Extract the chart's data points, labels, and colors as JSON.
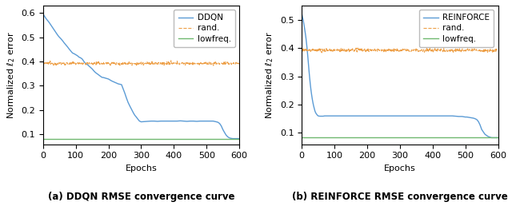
{
  "fig_width": 6.4,
  "fig_height": 2.58,
  "dpi": 100,
  "background_color": "#ffffff",
  "subplot_a": {
    "caption": "(a) DDQN RMSE convergence curve",
    "ylabel": "Normalized $\\ell_2$ error",
    "xlabel": "Epochs",
    "xlim": [
      0,
      600
    ],
    "ylim": [
      0.06,
      0.63
    ],
    "yticks": [
      0.1,
      0.2,
      0.3,
      0.4,
      0.5,
      0.6
    ],
    "xticks": [
      0,
      100,
      200,
      300,
      400,
      500,
      600
    ],
    "legend_label": "DDQN",
    "rand_value": 0.392,
    "lowfreq_value": 0.083,
    "ddqn_x": [
      0,
      5,
      10,
      15,
      20,
      25,
      30,
      35,
      40,
      45,
      50,
      55,
      60,
      65,
      70,
      75,
      80,
      85,
      90,
      95,
      100,
      105,
      110,
      115,
      120,
      125,
      130,
      135,
      140,
      145,
      150,
      155,
      160,
      165,
      170,
      175,
      180,
      185,
      190,
      195,
      200,
      210,
      220,
      230,
      240,
      250,
      255,
      260,
      265,
      270,
      275,
      280,
      285,
      290,
      295,
      300,
      310,
      320,
      330,
      340,
      350,
      360,
      370,
      380,
      390,
      400,
      410,
      420,
      430,
      440,
      450,
      460,
      470,
      480,
      490,
      500,
      510,
      520,
      530,
      535,
      540,
      545,
      550,
      555,
      560,
      565,
      570,
      575,
      580,
      585,
      590,
      595,
      600
    ],
    "ddqn_y": [
      0.595,
      0.585,
      0.575,
      0.567,
      0.558,
      0.548,
      0.538,
      0.528,
      0.518,
      0.508,
      0.5,
      0.493,
      0.485,
      0.476,
      0.468,
      0.46,
      0.451,
      0.443,
      0.435,
      0.432,
      0.428,
      0.424,
      0.418,
      0.415,
      0.41,
      0.4,
      0.392,
      0.388,
      0.382,
      0.376,
      0.37,
      0.362,
      0.355,
      0.35,
      0.345,
      0.34,
      0.335,
      0.334,
      0.332,
      0.33,
      0.328,
      0.32,
      0.314,
      0.308,
      0.305,
      0.27,
      0.25,
      0.232,
      0.218,
      0.205,
      0.192,
      0.18,
      0.172,
      0.163,
      0.155,
      0.152,
      0.153,
      0.154,
      0.155,
      0.155,
      0.154,
      0.155,
      0.155,
      0.155,
      0.155,
      0.155,
      0.155,
      0.156,
      0.155,
      0.154,
      0.155,
      0.155,
      0.154,
      0.155,
      0.155,
      0.155,
      0.155,
      0.155,
      0.152,
      0.15,
      0.145,
      0.135,
      0.12,
      0.108,
      0.097,
      0.09,
      0.086,
      0.084,
      0.083,
      0.083,
      0.083,
      0.083,
      0.083
    ],
    "line_color": "#5b9bd5",
    "rand_color": "#ed9e45",
    "lowfreq_color": "#70b870"
  },
  "subplot_b": {
    "caption": "(b) REINFORCE RMSE convergence curve",
    "ylabel": "Normalized $\\ell_2$ error",
    "xlabel": "Epochs",
    "xlim": [
      0,
      600
    ],
    "ylim": [
      0.06,
      0.55
    ],
    "yticks": [
      0.1,
      0.2,
      0.3,
      0.4,
      0.5
    ],
    "xticks": [
      0,
      100,
      200,
      300,
      400,
      500,
      600
    ],
    "legend_label": "REINFORCE",
    "rand_value": 0.392,
    "lowfreq_value": 0.083,
    "reinforce_x": [
      0,
      2,
      4,
      6,
      8,
      10,
      12,
      14,
      16,
      18,
      20,
      22,
      24,
      26,
      28,
      30,
      32,
      34,
      36,
      38,
      40,
      42,
      44,
      46,
      48,
      50,
      55,
      60,
      65,
      70,
      75,
      80,
      85,
      90,
      95,
      100,
      120,
      140,
      160,
      180,
      200,
      250,
      300,
      350,
      400,
      450,
      460,
      470,
      480,
      490,
      495,
      500,
      505,
      510,
      515,
      520,
      525,
      530,
      535,
      540,
      545,
      550,
      560,
      570,
      580,
      590,
      600
    ],
    "reinforce_y": [
      0.52,
      0.51,
      0.5,
      0.487,
      0.473,
      0.458,
      0.442,
      0.422,
      0.4,
      0.375,
      0.348,
      0.32,
      0.295,
      0.272,
      0.252,
      0.235,
      0.22,
      0.207,
      0.196,
      0.187,
      0.178,
      0.172,
      0.168,
      0.165,
      0.162,
      0.16,
      0.159,
      0.159,
      0.159,
      0.16,
      0.16,
      0.16,
      0.16,
      0.16,
      0.16,
      0.16,
      0.16,
      0.16,
      0.16,
      0.16,
      0.16,
      0.16,
      0.16,
      0.16,
      0.16,
      0.16,
      0.16,
      0.159,
      0.158,
      0.158,
      0.157,
      0.156,
      0.156,
      0.155,
      0.154,
      0.153,
      0.152,
      0.15,
      0.147,
      0.14,
      0.128,
      0.112,
      0.095,
      0.087,
      0.083,
      0.083,
      0.083
    ],
    "line_color": "#5b9bd5",
    "rand_color": "#ed9e45",
    "lowfreq_color": "#70b870"
  }
}
